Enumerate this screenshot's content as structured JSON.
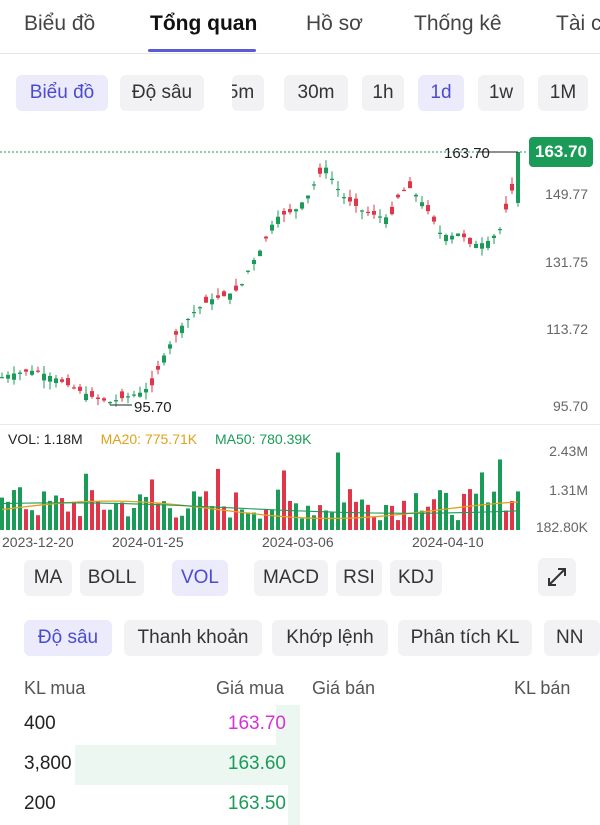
{
  "nav": {
    "tabs": [
      {
        "label": "Biểu đồ"
      },
      {
        "label": "Tổng quan"
      },
      {
        "label": "Hồ sơ"
      },
      {
        "label": "Thống kê"
      },
      {
        "label": "Tài c"
      }
    ],
    "active_index": 1
  },
  "chart_toolbar": {
    "mode_tabs": [
      "Biểu đồ",
      "Độ sâu"
    ],
    "active_mode": "Biểu đồ",
    "intervals": [
      "5m",
      "30m",
      "1h",
      "1d",
      "1w",
      "1M"
    ],
    "active_interval": "1d"
  },
  "price_axis": {
    "labels": [
      "149.77",
      "131.75",
      "113.72",
      "95.70"
    ],
    "current_price": "163.70",
    "current_label": "163.70",
    "low_label": "95.70"
  },
  "volume_panel": {
    "legend": {
      "vol": "VOL: 1.18M",
      "ma20": "MA20: 775.71K",
      "ma50": "MA50: 780.39K"
    },
    "axis_labels": [
      "2.43M",
      "1.31M",
      "182.80K"
    ]
  },
  "x_axis": {
    "labels": [
      "2023-12-20",
      "2024-01-25",
      "2024-03-06",
      "2024-04-10"
    ]
  },
  "indicators": {
    "items": [
      "MA",
      "BOLL",
      "VOL",
      "MACD",
      "RSI",
      "KDJ"
    ],
    "active": "VOL"
  },
  "bottom_tabs": {
    "items": [
      "Độ sâu",
      "Thanh khoản",
      "Khớp lệnh",
      "Phân tích KL",
      "NN"
    ],
    "active": "Độ sâu"
  },
  "order_book": {
    "headers": {
      "buy_qty": "KL mua",
      "buy_price": "Giá mua",
      "sell_price": "Giá bán",
      "sell_qty": "KL bán"
    },
    "rows": [
      {
        "qty": "400",
        "price": "163.70",
        "color": "#d633d6",
        "fill": 0.08
      },
      {
        "qty": "3,800",
        "price": "163.60",
        "color": "#1a9b57",
        "fill": 0.75
      },
      {
        "qty": "200",
        "price": "163.50",
        "color": "#1a9b57",
        "fill": 0.04
      }
    ]
  },
  "colors": {
    "up": "#1a9b57",
    "down": "#e0364a",
    "ma20": "#e0a21a",
    "ma50": "#1a9b57",
    "accent": "#5b5bd6"
  },
  "chart_data": {
    "type": "candlestick",
    "x": [
      "2023-12-20",
      "2024-01-25",
      "2024-03-06",
      "2024-04-10"
    ],
    "price_ticks": [
      95.7,
      113.72,
      131.75,
      149.77,
      163.7
    ],
    "high": 163.7,
    "low": 95.7,
    "close": 163.7,
    "volume_ticks": [
      182800,
      1310000,
      2430000
    ],
    "last_volume": 1180000,
    "ma20_volume": 775710,
    "ma50_volume": 780390
  }
}
